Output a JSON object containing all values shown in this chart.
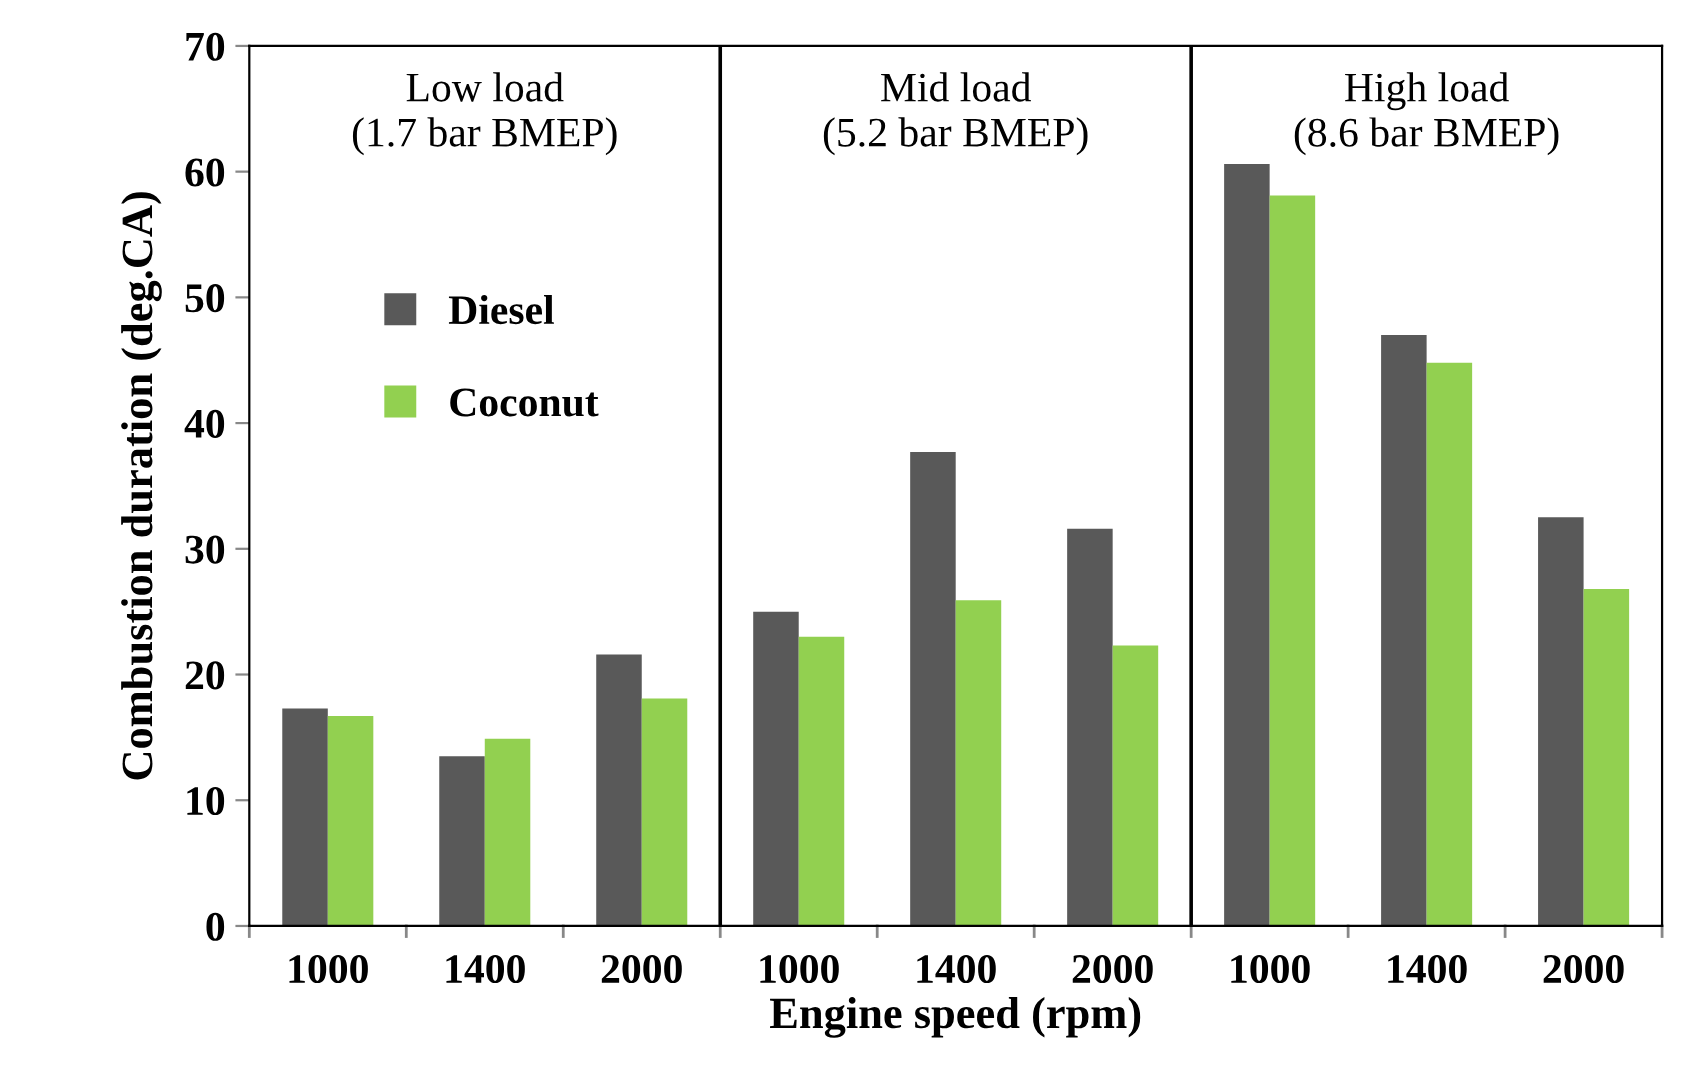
{
  "chart_data": {
    "type": "bar",
    "xlabel": "Engine speed (rpm)",
    "ylabel": "Combustion duration (deg.CA)",
    "categories": [
      "1000",
      "1400",
      "2000",
      "1000",
      "1400",
      "2000",
      "1000",
      "1400",
      "2000"
    ],
    "series": [
      {
        "name": "Diesel",
        "color": "#595959",
        "values": [
          17.3,
          13.5,
          21.6,
          25.0,
          37.7,
          31.6,
          60.6,
          47.0,
          32.5
        ]
      },
      {
        "name": "Coconut",
        "color": "#92d050",
        "values": [
          16.7,
          14.9,
          18.1,
          23.0,
          25.9,
          22.3,
          58.1,
          44.8,
          26.8
        ]
      }
    ],
    "ylim": [
      0,
      70
    ],
    "yticks": [
      0,
      10,
      20,
      30,
      40,
      50,
      60,
      70
    ],
    "grid": false,
    "legend": "top left",
    "annotations": [
      "Low load\n(1.7 bar BMEP)",
      "Mid load\n(5.2 bar BMEP)",
      "High load\n(8.6 bar BMEP)"
    ]
  }
}
